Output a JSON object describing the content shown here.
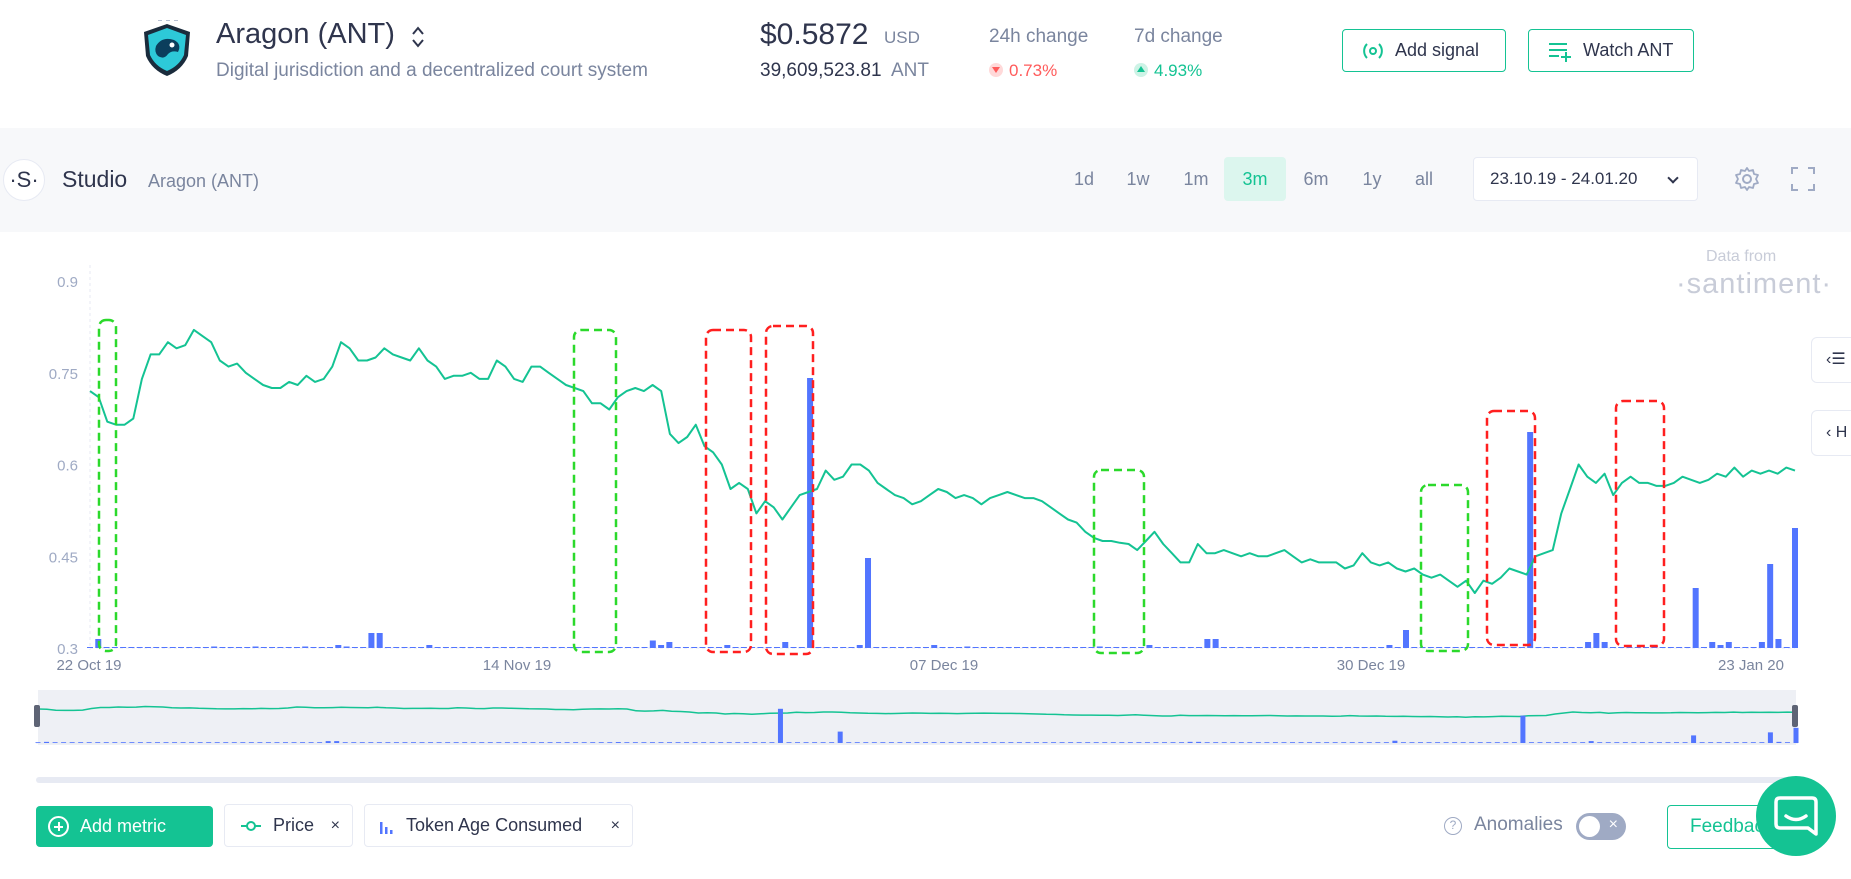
{
  "project": {
    "name": "Aragon (ANT)",
    "description": "Digital jurisdiction and a decentralized court system",
    "price": "$0.5872",
    "price_currency": "USD",
    "supply": "39,609,523.81",
    "supply_unit": "ANT",
    "change_24h_label": "24h change",
    "change_24h_value": "0.73%",
    "change_7d_label": "7d change",
    "change_7d_value": "4.93%",
    "logo_icon": "aragon-eagle-shield-icon"
  },
  "header_buttons": {
    "add_signal": "Add signal",
    "watch": "Watch ANT"
  },
  "studio": {
    "title": "Studio",
    "subtitle": "Aragon (ANT)",
    "logo_glyph": "·S·",
    "ranges": [
      "1d",
      "1w",
      "1m",
      "3m",
      "6m",
      "1y",
      "all"
    ],
    "active_range": "3m",
    "date_range": "23.10.19 - 24.01.20"
  },
  "watermark": {
    "line1": "Data from",
    "line2": "·santiment·"
  },
  "side_tabs": [
    "‹☰",
    "‹ H"
  ],
  "chart_data": {
    "type": "line",
    "title": "",
    "y_ticks": [
      "0.9",
      "0.75",
      "0.6",
      "0.45",
      "0.3"
    ],
    "ylim": [
      0.3,
      0.9
    ],
    "x_ticks": [
      "22 Oct 19",
      "14 Nov 19",
      "07 Dec 19",
      "30 Dec 19",
      "23 Jan 20"
    ],
    "colors": {
      "price": "#14c393",
      "token_age": "#5275ff",
      "anomaly_green": "#2bd92b",
      "anomaly_red": "#ff1f1f"
    },
    "price": [
      0.72,
      0.71,
      0.67,
      0.665,
      0.665,
      0.675,
      0.74,
      0.78,
      0.78,
      0.8,
      0.79,
      0.795,
      0.82,
      0.81,
      0.8,
      0.77,
      0.76,
      0.765,
      0.75,
      0.74,
      0.73,
      0.725,
      0.725,
      0.735,
      0.73,
      0.745,
      0.735,
      0.74,
      0.76,
      0.8,
      0.79,
      0.77,
      0.77,
      0.775,
      0.79,
      0.78,
      0.775,
      0.77,
      0.79,
      0.77,
      0.76,
      0.74,
      0.745,
      0.745,
      0.75,
      0.74,
      0.74,
      0.77,
      0.76,
      0.74,
      0.735,
      0.76,
      0.76,
      0.75,
      0.74,
      0.73,
      0.725,
      0.72,
      0.7,
      0.7,
      0.69,
      0.71,
      0.72,
      0.725,
      0.72,
      0.73,
      0.72,
      0.65,
      0.635,
      0.645,
      0.665,
      0.63,
      0.62,
      0.6,
      0.56,
      0.57,
      0.56,
      0.52,
      0.54,
      0.53,
      0.51,
      0.53,
      0.55,
      0.555,
      0.56,
      0.59,
      0.575,
      0.58,
      0.6,
      0.6,
      0.59,
      0.57,
      0.56,
      0.55,
      0.545,
      0.535,
      0.54,
      0.55,
      0.56,
      0.555,
      0.545,
      0.55,
      0.545,
      0.535,
      0.545,
      0.55,
      0.555,
      0.55,
      0.545,
      0.545,
      0.54,
      0.53,
      0.52,
      0.51,
      0.505,
      0.49,
      0.48,
      0.475,
      0.475,
      0.472,
      0.47,
      0.46,
      0.475,
      0.49,
      0.47,
      0.455,
      0.44,
      0.44,
      0.47,
      0.455,
      0.455,
      0.46,
      0.455,
      0.45,
      0.455,
      0.45,
      0.45,
      0.455,
      0.46,
      0.45,
      0.44,
      0.445,
      0.44,
      0.44,
      0.44,
      0.43,
      0.435,
      0.455,
      0.44,
      0.435,
      0.44,
      0.43,
      0.425,
      0.43,
      0.42,
      0.415,
      0.42,
      0.41,
      0.4,
      0.41,
      0.39,
      0.41,
      0.405,
      0.415,
      0.43,
      0.425,
      0.42,
      0.45,
      0.455,
      0.46,
      0.52,
      0.56,
      0.6,
      0.58,
      0.57,
      0.585,
      0.55,
      0.57,
      0.58,
      0.57,
      0.57,
      0.565,
      0.565,
      0.57,
      0.58,
      0.575,
      0.57,
      0.575,
      0.585,
      0.58,
      0.595,
      0.58,
      0.59,
      0.585,
      0.59,
      0.585,
      0.595,
      0.59
    ],
    "token_age": [
      0,
      0.03,
      0,
      0,
      0,
      0,
      0,
      0,
      0,
      0,
      0,
      0,
      0,
      0,
      0,
      0.005,
      0,
      0,
      0,
      0,
      0.005,
      0,
      0,
      0,
      0,
      0,
      0.005,
      0,
      0,
      0,
      0.01,
      0.005,
      0,
      0,
      0.05,
      0.05,
      0,
      0,
      0,
      0,
      0,
      0.01,
      0,
      0,
      0,
      0,
      0,
      0,
      0,
      0,
      0,
      0,
      0,
      0,
      0,
      0,
      0,
      0,
      0,
      0,
      0,
      0,
      0,
      0,
      0,
      0,
      0,
      0,
      0.025,
      0.01,
      0.02,
      0,
      0,
      0,
      0,
      0,
      0,
      0.01,
      0,
      0,
      0,
      0,
      0,
      0,
      0.02,
      0,
      0,
      0.9,
      0,
      0,
      0,
      0,
      0,
      0.01,
      0.3,
      0,
      0,
      0,
      0,
      0,
      0,
      0,
      0.01,
      0,
      0,
      0,
      0.005,
      0,
      0,
      0,
      0,
      0,
      0,
      0,
      0,
      0,
      0,
      0,
      0,
      0,
      0,
      0,
      0.005,
      0,
      0,
      0,
      0,
      0,
      0.01,
      0,
      0,
      0,
      0,
      0,
      0,
      0.03,
      0.03,
      0,
      0,
      0,
      0,
      0,
      0,
      0,
      0,
      0,
      0,
      0,
      0,
      0,
      0,
      0,
      0,
      0,
      0,
      0,
      0,
      0.01,
      0,
      0.06,
      0,
      0,
      0,
      0,
      0,
      0,
      0,
      0,
      0,
      0,
      0,
      0,
      0,
      0,
      0.72,
      0,
      0,
      0,
      0,
      0,
      0,
      0.02,
      0.05,
      0.02,
      0,
      0,
      0,
      0,
      0,
      0,
      0,
      0,
      0,
      0,
      0.2,
      0,
      0.02,
      0.01,
      0.02,
      0,
      0,
      0,
      0.02,
      0.28,
      0.03,
      0,
      0.4
    ]
  },
  "toolbar": {
    "add_metric": "Add metric",
    "metrics": [
      "Price",
      "Token Age Consumed"
    ],
    "remove_glyph": "×",
    "anomalies_label": "Anomalies",
    "anomalies_help": "?",
    "toggle_glyph": "×",
    "feedback": "Feedback"
  }
}
